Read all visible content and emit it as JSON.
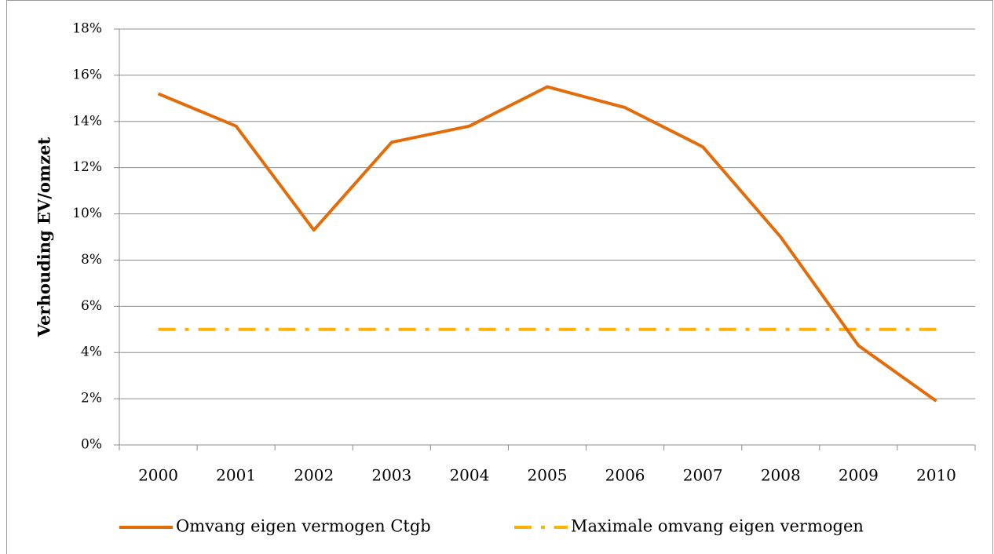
{
  "chart_data": {
    "type": "line",
    "y_label": "Verhouding EV/omzet",
    "categories": [
      "2000",
      "2001",
      "2002",
      "2003",
      "2004",
      "2005",
      "2006",
      "2007",
      "2008",
      "2009",
      "2010"
    ],
    "series": [
      {
        "name": "Omvang eigen vermogen Ctgb",
        "color": "#e36c0a",
        "line_style": "solid",
        "values": [
          15.2,
          13.8,
          9.3,
          13.1,
          13.8,
          15.5,
          14.6,
          12.9,
          9.0,
          4.3,
          1.9
        ]
      },
      {
        "name": "Maximale omvang eigen vermogen",
        "color": "#ffb000",
        "line_style": "dash-dot",
        "values": [
          5,
          5,
          5,
          5,
          5,
          5,
          5,
          5,
          5,
          5,
          5
        ]
      }
    ],
    "ylim": [
      0,
      18
    ],
    "yticks": [
      {
        "value": 0,
        "label": "0%"
      },
      {
        "value": 2,
        "label": "2%"
      },
      {
        "value": 4,
        "label": "4%"
      },
      {
        "value": 6,
        "label": "6%"
      },
      {
        "value": 8,
        "label": "8%"
      },
      {
        "value": 10,
        "label": "10%"
      },
      {
        "value": 12,
        "label": "12%"
      },
      {
        "value": 14,
        "label": "14%"
      },
      {
        "value": 16,
        "label": "16%"
      },
      {
        "value": 18,
        "label": "18%"
      }
    ],
    "grid": true,
    "legend": "bottom"
  }
}
